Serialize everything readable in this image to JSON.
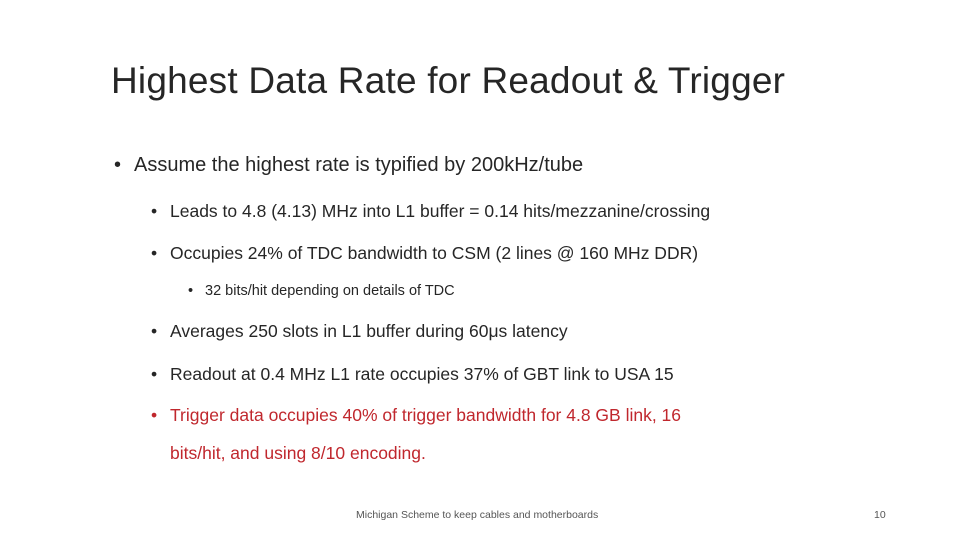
{
  "slide": {
    "title": "Highest Data Rate for Readout & Trigger",
    "bullet_symbol": "•",
    "bullets": [
      {
        "text": "Assume the highest rate is typified by 200kHz/tube"
      },
      {
        "text": "Leads to 4.8 (4.13) MHz into L1 buffer = 0.14 hits/mezzanine/crossing"
      },
      {
        "text": "Occupies 24% of TDC bandwidth to CSM (2 lines @ 160 MHz DDR)"
      },
      {
        "text": "32 bits/hit depending on details of TDC"
      },
      {
        "text": "Averages 250 slots in L1 buffer during 60μs latency"
      },
      {
        "text": "Readout at 0.4 MHz L1 rate occupies 37% of GBT link to USA 15"
      },
      {
        "text_line1": "Trigger data occupies 40% of trigger bandwidth for 4.8 GB link, 16",
        "text_line2": "bits/hit, and using 8/10 encoding.",
        "color": "#c0272d"
      }
    ],
    "footer": "Michigan Scheme to keep cables and motherboards",
    "page_number": "10"
  }
}
